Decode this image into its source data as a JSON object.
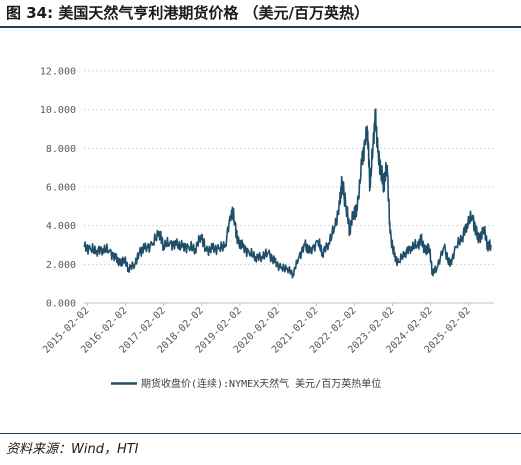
{
  "figure": {
    "title": "图 34:  美国天然气亨利港期货价格 （美元/百万英热）",
    "source": "资料来源：Wind，HTI"
  },
  "colors": {
    "line": "#1f4e69",
    "rule": "#1f3f5b",
    "grid": "#d9d9d9",
    "text": "#595959"
  },
  "chart_data": {
    "type": "line",
    "grid": true,
    "legend_placement": "bottom",
    "xlim": [
      "2015-01-01",
      "2025-10-01"
    ],
    "ylim": [
      0,
      12
    ],
    "x_ticks": [
      "2015-02-02",
      "2016-02-02",
      "2017-02-02",
      "2018-02-02",
      "2019-02-02",
      "2020-02-02",
      "2021-02-02",
      "2022-02-02",
      "2023-02-02",
      "2024-02-02",
      "2025-02-02"
    ],
    "y_ticks": [
      "0.000",
      "2.000",
      "4.000",
      "6.000",
      "8.000",
      "10.000",
      "12.000"
    ],
    "series": [
      {
        "name": "期货收盘价(连续):NYMEX天然气  美元/百万英热单位",
        "x": [
          "2015-01-05",
          "2015-03-01",
          "2015-05-01",
          "2015-07-01",
          "2015-09-01",
          "2015-11-01",
          "2015-12-15",
          "2016-01-15",
          "2016-03-01",
          "2016-05-01",
          "2016-06-15",
          "2016-08-01",
          "2016-10-15",
          "2016-12-20",
          "2017-02-01",
          "2017-04-01",
          "2017-06-01",
          "2017-08-01",
          "2017-10-01",
          "2017-12-01",
          "2018-01-25",
          "2018-03-15",
          "2018-05-15",
          "2018-07-15",
          "2018-09-15",
          "2018-11-14",
          "2018-12-15",
          "2019-01-15",
          "2019-03-01",
          "2019-05-01",
          "2019-07-01",
          "2019-09-01",
          "2019-11-01",
          "2020-01-01",
          "2020-03-01",
          "2020-05-01",
          "2020-06-25",
          "2020-08-15",
          "2020-10-15",
          "2020-12-01",
          "2021-02-17",
          "2021-04-01",
          "2021-06-01",
          "2021-08-01",
          "2021-09-15",
          "2021-10-06",
          "2021-11-15",
          "2021-12-20",
          "2022-01-27",
          "2022-03-01",
          "2022-04-15",
          "2022-05-15",
          "2022-06-10",
          "2022-07-01",
          "2022-08-01",
          "2022-08-22",
          "2022-09-15",
          "2022-10-15",
          "2022-11-10",
          "2022-12-13",
          "2023-01-10",
          "2023-02-20",
          "2023-04-01",
          "2023-06-01",
          "2023-08-01",
          "2023-10-01",
          "2023-11-01",
          "2023-12-15",
          "2024-01-15",
          "2024-02-20",
          "2024-04-01",
          "2024-06-10",
          "2024-08-05",
          "2024-10-01",
          "2024-12-01",
          "2025-01-15",
          "2025-03-10",
          "2025-04-15",
          "2025-05-15",
          "2025-06-20",
          "2025-08-01",
          "2025-09-01"
        ],
        "values": [
          2.9,
          2.8,
          2.7,
          2.8,
          2.7,
          2.3,
          2.0,
          2.3,
          1.8,
          2.0,
          2.6,
          2.8,
          3.0,
          3.7,
          3.0,
          3.1,
          3.0,
          2.9,
          2.9,
          2.8,
          3.5,
          2.7,
          2.8,
          2.8,
          3.0,
          4.8,
          4.2,
          3.1,
          2.9,
          2.6,
          2.4,
          2.4,
          2.6,
          2.1,
          1.8,
          1.8,
          1.5,
          2.3,
          3.0,
          2.6,
          3.2,
          2.6,
          3.1,
          4.0,
          5.1,
          6.3,
          5.0,
          3.8,
          4.7,
          4.8,
          7.3,
          8.3,
          8.9,
          6.0,
          8.3,
          9.7,
          7.8,
          6.8,
          6.2,
          7.1,
          3.6,
          2.4,
          2.1,
          2.6,
          2.9,
          3.0,
          3.3,
          2.6,
          3.0,
          1.6,
          1.8,
          2.9,
          1.9,
          2.9,
          3.4,
          4.1,
          4.5,
          3.6,
          3.2,
          3.9,
          3.0,
          3.0
        ]
      }
    ]
  }
}
